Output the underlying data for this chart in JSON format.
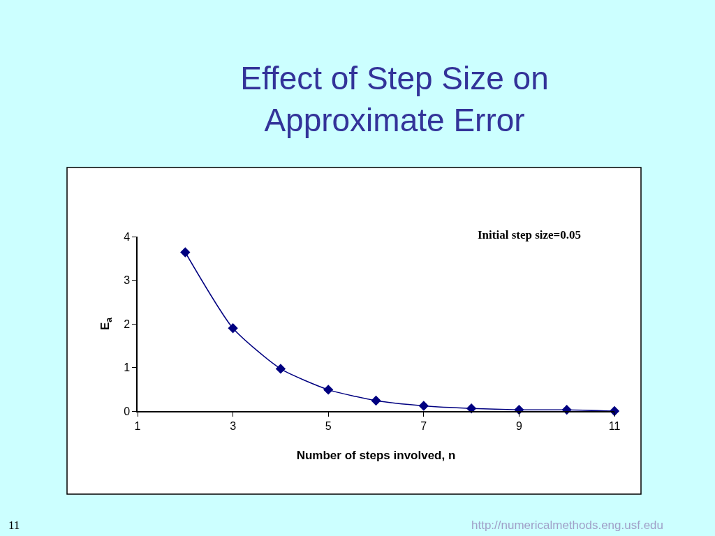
{
  "chart_data": {
    "type": "line",
    "title": "Effect of Step Size on\nApproximate Error",
    "xlabel": "Number of steps involved, n",
    "ylabel": "E$_{a}$",
    "x": [
      2,
      3,
      4,
      5,
      6,
      7,
      8,
      9,
      10,
      11
    ],
    "series": [
      {
        "color": "#000080",
        "values": [
          3.64,
          1.9,
          0.97,
          0.49,
          0.24,
          0.12,
          0.06,
          0.03,
          0.03,
          0.0
        ]
      }
    ],
    "xlim": [
      1,
      11
    ],
    "xticks": [
      1,
      3,
      5,
      7,
      9,
      11
    ],
    "ylim": [
      0,
      4
    ],
    "yticks": [
      0,
      1,
      2,
      3,
      4
    ],
    "marker": "diamond",
    "line_style": "solid",
    "annotations": [
      "Initial step size=0.05",
      "11",
      "http://numericalmethods.eng.usf.edu"
    ]
  }
}
